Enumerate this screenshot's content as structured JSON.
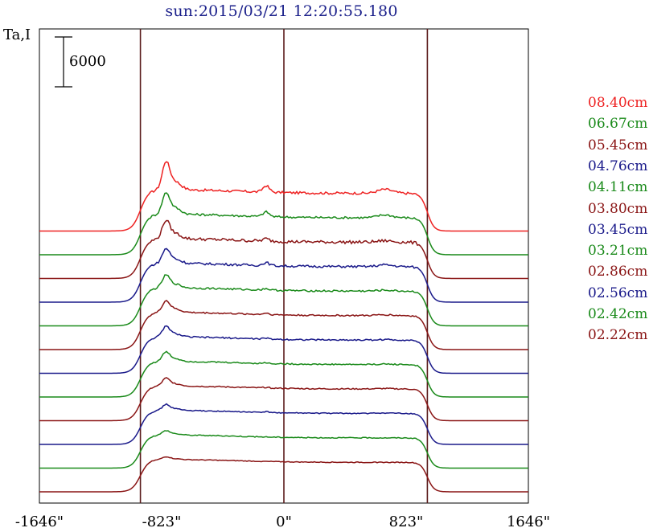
{
  "chart_data": {
    "type": "line",
    "title": "sun:2015/03/21 12:20:55.180",
    "ylabel": "Ta,I",
    "scale_bar_label": "6000",
    "xlim": [
      -1646,
      1646
    ],
    "x_ticks": [
      {
        "value": -1646,
        "label": "-1646\""
      },
      {
        "value": -823,
        "label": "-823\""
      },
      {
        "value": 0,
        "label": "0\""
      },
      {
        "value": 823,
        "label": "823\""
      },
      {
        "value": 1646,
        "label": "1646\""
      }
    ],
    "vertical_markers": [
      -966,
      0,
      966
    ],
    "marker_color": "#5a1a1a",
    "series": [
      {
        "name": "08.40cm",
        "color": "#ee2222",
        "offset": 11,
        "amp": 1.0,
        "peak": 31,
        "bump": 8,
        "ripple": 1.0
      },
      {
        "name": "06.67cm",
        "color": "#1a8a1a",
        "offset": 10,
        "amp": 0.98,
        "peak": 24,
        "bump": 6,
        "ripple": 0.9
      },
      {
        "name": "05.45cm",
        "color": "#8a1515",
        "offset": 9,
        "amp": 0.96,
        "peak": 21,
        "bump": 3,
        "ripple": 1.3
      },
      {
        "name": "04.76cm",
        "color": "#1a1a8a",
        "offset": 8,
        "amp": 0.94,
        "peak": 17,
        "bump": 4,
        "ripple": 1.0
      },
      {
        "name": "04.11cm",
        "color": "#1a8a1a",
        "offset": 7,
        "amp": 0.92,
        "peak": 15,
        "bump": 2,
        "ripple": 0.8
      },
      {
        "name": "03.80cm",
        "color": "#8a1515",
        "offset": 6,
        "amp": 0.9,
        "peak": 14,
        "bump": 2,
        "ripple": 0.7
      },
      {
        "name": "03.45cm",
        "color": "#1a1a8a",
        "offset": 5,
        "amp": 0.88,
        "peak": 13,
        "bump": 1,
        "ripple": 0.7
      },
      {
        "name": "03.21cm",
        "color": "#1a8a1a",
        "offset": 4,
        "amp": 0.86,
        "peak": 12,
        "bump": 1,
        "ripple": 0.6
      },
      {
        "name": "02.86cm",
        "color": "#8a1515",
        "offset": 3,
        "amp": 0.84,
        "peak": 10,
        "bump": 1,
        "ripple": 0.6
      },
      {
        "name": "02.56cm",
        "color": "#1a1a8a",
        "offset": 2,
        "amp": 0.82,
        "peak": 8,
        "bump": 1,
        "ripple": 0.5
      },
      {
        "name": "02.42cm",
        "color": "#1a8a1a",
        "offset": 1,
        "amp": 0.8,
        "peak": 6,
        "bump": 0,
        "ripple": 0.5
      },
      {
        "name": "02.22cm",
        "color": "#8a1515",
        "offset": 0,
        "amp": 0.78,
        "peak": 4,
        "bump": 0,
        "ripple": 0.4
      }
    ]
  }
}
